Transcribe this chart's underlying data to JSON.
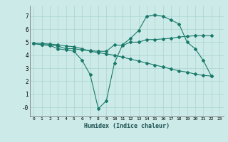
{
  "xlabel": "Humidex (Indice chaleur)",
  "ylabel": "",
  "background_color": "#cceae8",
  "grid_color": "#aad4d0",
  "line_color": "#1a7a6a",
  "xlim": [
    -0.5,
    23.5
  ],
  "ylim": [
    -0.7,
    7.8
  ],
  "xticks": [
    0,
    1,
    2,
    3,
    4,
    5,
    6,
    7,
    8,
    9,
    10,
    11,
    12,
    13,
    14,
    15,
    16,
    17,
    18,
    19,
    20,
    21,
    22,
    23
  ],
  "yticks": [
    0,
    1,
    2,
    3,
    4,
    5,
    6,
    7
  ],
  "ytick_labels": [
    "-0",
    "1",
    "2",
    "3",
    "4",
    "5",
    "6",
    "7"
  ],
  "line1_x": [
    0,
    1,
    2,
    3,
    4,
    5,
    6,
    7,
    8,
    9,
    10,
    11,
    12,
    13,
    14,
    15,
    16,
    17,
    18,
    19,
    20,
    21,
    22
  ],
  "line1_y": [
    4.9,
    4.8,
    4.8,
    4.7,
    4.5,
    4.5,
    4.4,
    4.35,
    4.3,
    4.3,
    4.8,
    4.75,
    5.0,
    5.0,
    5.2,
    5.2,
    5.25,
    5.3,
    5.4,
    5.45,
    5.5,
    5.5,
    5.5
  ],
  "line2_x": [
    0,
    1,
    2,
    3,
    4,
    5,
    6,
    7,
    8,
    9,
    10,
    11,
    12,
    13,
    14,
    15,
    16,
    17,
    18,
    19,
    20,
    21,
    22
  ],
  "line2_y": [
    4.9,
    4.8,
    4.75,
    4.5,
    4.4,
    4.3,
    3.6,
    2.5,
    -0.1,
    0.5,
    3.4,
    4.8,
    5.3,
    5.9,
    7.0,
    7.1,
    7.0,
    6.7,
    6.4,
    5.0,
    4.5,
    3.6,
    2.4
  ],
  "line3_x": [
    0,
    1,
    2,
    3,
    4,
    5,
    6,
    7,
    8,
    9,
    10,
    11,
    12,
    13,
    14,
    15,
    16,
    17,
    18,
    19,
    20,
    21,
    22
  ],
  "line3_y": [
    4.9,
    4.9,
    4.85,
    4.8,
    4.7,
    4.65,
    4.5,
    4.3,
    4.2,
    4.1,
    4.0,
    3.85,
    3.7,
    3.55,
    3.4,
    3.25,
    3.1,
    2.95,
    2.8,
    2.7,
    2.55,
    2.45,
    2.4
  ]
}
